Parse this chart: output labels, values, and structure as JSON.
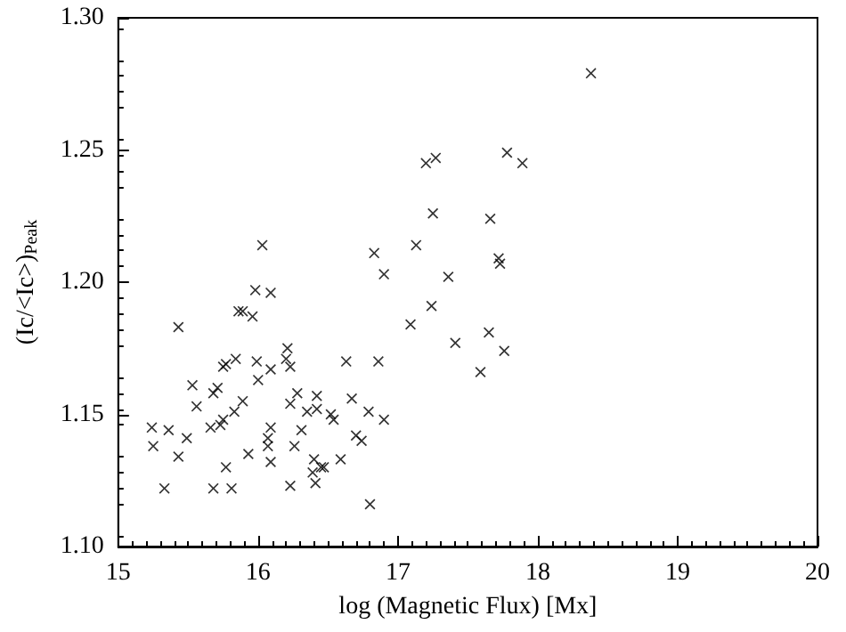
{
  "chart_data": {
    "type": "scatter",
    "xlabel": "log (Magnetic Flux) [Mx]",
    "ylabel": "(Ic/<Ic>)$_{Peak}$",
    "xlim": [
      15,
      20
    ],
    "xticks": [
      15,
      16,
      17,
      18,
      19,
      20
    ],
    "ylim": [
      1.1,
      1.3
    ],
    "yticks": [
      {
        "value": 1.1,
        "label": "1.10"
      },
      {
        "value": 1.15,
        "label": "1.15"
      },
      {
        "value": 1.2,
        "label": "1.20"
      },
      {
        "value": 1.25,
        "label": "1.25"
      },
      {
        "value": 1.3,
        "label": "1.30"
      }
    ],
    "grid": false,
    "marker": "cross",
    "series": [
      {
        "color": "#000000",
        "x": [
          15.24,
          15.25,
          15.33,
          15.36,
          15.43,
          15.43,
          15.49,
          15.53,
          15.56,
          15.66,
          15.68,
          15.68,
          15.71,
          15.73,
          15.75,
          15.75,
          15.77,
          15.77,
          15.81,
          15.83,
          15.84,
          15.86,
          15.89,
          15.89,
          15.93,
          15.96,
          15.98,
          15.99,
          16.0,
          16.03,
          16.07,
          16.07,
          16.09,
          16.09,
          16.09,
          16.09,
          16.21,
          16.2,
          16.23,
          16.23,
          16.23,
          16.26,
          16.28,
          16.31,
          16.35,
          16.39,
          16.4,
          16.42,
          16.42,
          16.41,
          16.45,
          16.47,
          16.52,
          16.54,
          16.59,
          16.63,
          16.67,
          16.7,
          16.74,
          16.79,
          16.8,
          16.83,
          16.86,
          16.9,
          16.9,
          17.09,
          17.13,
          17.2,
          17.27,
          17.24,
          17.25,
          17.36,
          17.41,
          17.59,
          17.65,
          17.66,
          17.72,
          17.73,
          17.76,
          17.78,
          17.89,
          18.38
        ],
        "values": [
          1.145,
          1.138,
          1.122,
          1.144,
          1.183,
          1.134,
          1.141,
          1.161,
          1.153,
          1.145,
          1.158,
          1.122,
          1.16,
          1.146,
          1.148,
          1.168,
          1.169,
          1.13,
          1.122,
          1.151,
          1.171,
          1.189,
          1.189,
          1.155,
          1.135,
          1.187,
          1.197,
          1.17,
          1.163,
          1.214,
          1.141,
          1.138,
          1.196,
          1.167,
          1.145,
          1.132,
          1.175,
          1.171,
          1.168,
          1.154,
          1.123,
          1.138,
          1.158,
          1.144,
          1.151,
          1.128,
          1.133,
          1.157,
          1.152,
          1.124,
          1.13,
          1.13,
          1.15,
          1.148,
          1.133,
          1.17,
          1.156,
          1.142,
          1.14,
          1.151,
          1.116,
          1.211,
          1.17,
          1.148,
          1.203,
          1.184,
          1.214,
          1.245,
          1.247,
          1.191,
          1.226,
          1.202,
          1.177,
          1.166,
          1.181,
          1.224,
          1.209,
          1.207,
          1.174,
          1.249,
          1.245,
          1.279
        ]
      }
    ]
  }
}
